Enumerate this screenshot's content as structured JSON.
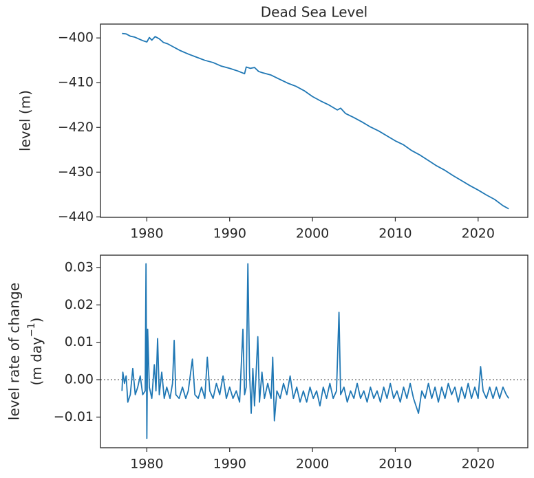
{
  "chart_data": [
    {
      "type": "line",
      "title": "Dead Sea Level",
      "ylabel": "level (m)",
      "color": "#1f77b4",
      "xlim": [
        1974.4,
        2026.0
      ],
      "xticks": [
        1980,
        1990,
        2000,
        2010,
        2020
      ],
      "ylim": [
        -440.1,
        -396.9
      ],
      "yticks": [
        {
          "value": -400,
          "label": "−400"
        },
        {
          "value": -410,
          "label": "−410"
        },
        {
          "value": -420,
          "label": "−420"
        },
        {
          "value": -430,
          "label": "−430"
        },
        {
          "value": -440,
          "label": "−440"
        }
      ],
      "x": [
        1977.0,
        1977.5,
        1978.0,
        1978.5,
        1979.0,
        1979.5,
        1980.0,
        1980.3,
        1980.6,
        1981.0,
        1981.5,
        1982.0,
        1982.5,
        1983.0,
        1984.0,
        1985.0,
        1986.0,
        1987.0,
        1988.0,
        1989.0,
        1990.0,
        1991.0,
        1991.8,
        1992.0,
        1992.5,
        1993.0,
        1993.5,
        1994.0,
        1995.0,
        1996.0,
        1997.0,
        1998.0,
        1999.0,
        2000.0,
        2001.0,
        2002.0,
        2003.0,
        2003.4,
        2004.0,
        2005.0,
        2006.0,
        2007.0,
        2008.0,
        2009.0,
        2010.0,
        2011.0,
        2012.0,
        2013.0,
        2014.0,
        2015.0,
        2016.0,
        2017.0,
        2018.0,
        2019.0,
        2020.0,
        2021.0,
        2022.0,
        2023.0,
        2023.7
      ],
      "values": [
        -399.0,
        -399.1,
        -399.6,
        -399.8,
        -400.2,
        -400.6,
        -400.9,
        -399.9,
        -400.5,
        -399.7,
        -400.2,
        -401.0,
        -401.3,
        -401.8,
        -402.8,
        -403.6,
        -404.3,
        -405.0,
        -405.5,
        -406.3,
        -406.8,
        -407.4,
        -408.0,
        -406.5,
        -406.8,
        -406.6,
        -407.5,
        -407.8,
        -408.3,
        -409.2,
        -410.1,
        -410.8,
        -411.8,
        -413.1,
        -414.1,
        -415.0,
        -416.1,
        -415.7,
        -416.9,
        -417.8,
        -418.8,
        -419.9,
        -420.8,
        -421.9,
        -423.0,
        -423.9,
        -425.2,
        -426.2,
        -427.4,
        -428.6,
        -429.6,
        -430.8,
        -431.9,
        -433.0,
        -434.0,
        -435.1,
        -436.1,
        -437.5,
        -438.2
      ]
    },
    {
      "type": "line",
      "ylabel": "level rate of change",
      "ylabel_unit": "(m day",
      "ylabel_sup": "−1",
      "ylabel_close": ")",
      "color": "#1f77b4",
      "reference_line": 0,
      "reference_color": "#999999",
      "xlim": [
        1974.4,
        2026.0
      ],
      "xticks": [
        1980,
        1990,
        2000,
        2010,
        2020
      ],
      "ylim": [
        -0.0182,
        0.0333
      ],
      "yticks": [
        0.03,
        0.02,
        0.01,
        {
          "value": 0,
          "label": "0.00"
        },
        {
          "value": -0.01,
          "label": "−0.01"
        }
      ],
      "x": [
        1977.0,
        1977.1,
        1977.3,
        1977.5,
        1977.7,
        1978.0,
        1978.3,
        1978.6,
        1978.9,
        1979.2,
        1979.5,
        1979.8,
        1979.9,
        1980.0,
        1980.1,
        1980.3,
        1980.6,
        1980.9,
        1981.1,
        1981.3,
        1981.5,
        1981.8,
        1982.1,
        1982.4,
        1982.8,
        1983.1,
        1983.3,
        1983.5,
        1983.9,
        1984.3,
        1984.7,
        1985.0,
        1985.5,
        1985.8,
        1986.2,
        1986.6,
        1987.0,
        1987.3,
        1987.6,
        1988.0,
        1988.4,
        1988.8,
        1989.2,
        1989.6,
        1990.0,
        1990.4,
        1990.8,
        1991.2,
        1991.6,
        1991.8,
        1992.0,
        1992.2,
        1992.4,
        1992.6,
        1992.8,
        1993.0,
        1993.2,
        1993.4,
        1993.6,
        1993.9,
        1994.2,
        1994.6,
        1995.0,
        1995.2,
        1995.4,
        1995.7,
        1996.1,
        1996.5,
        1996.9,
        1997.3,
        1997.7,
        1998.1,
        1998.5,
        1998.9,
        1999.3,
        1999.7,
        2000.1,
        2000.5,
        2000.9,
        2001.3,
        2001.7,
        2002.1,
        2002.5,
        2002.9,
        2003.2,
        2003.4,
        2003.8,
        2004.2,
        2004.6,
        2005.0,
        2005.4,
        2005.8,
        2006.2,
        2006.6,
        2007.0,
        2007.4,
        2007.8,
        2008.2,
        2008.6,
        2009.0,
        2009.4,
        2009.8,
        2010.2,
        2010.6,
        2011.0,
        2011.4,
        2011.8,
        2012.2,
        2012.8,
        2013.2,
        2013.6,
        2014.0,
        2014.4,
        2014.8,
        2015.2,
        2015.6,
        2016.0,
        2016.4,
        2016.8,
        2017.2,
        2017.6,
        2018.0,
        2018.4,
        2018.8,
        2019.2,
        2019.6,
        2020.0,
        2020.3,
        2020.6,
        2021.0,
        2021.4,
        2021.8,
        2022.2,
        2022.6,
        2023.0,
        2023.4,
        2023.7
      ],
      "values": [
        -0.003,
        0.002,
        -0.001,
        0.001,
        -0.006,
        -0.004,
        0.003,
        -0.004,
        -0.002,
        0.001,
        -0.004,
        -0.003,
        0.031,
        -0.0157,
        0.0135,
        -0.002,
        -0.005,
        0.004,
        -0.003,
        0.011,
        -0.004,
        0.002,
        -0.005,
        -0.002,
        -0.005,
        -0.001,
        0.0105,
        -0.004,
        -0.005,
        -0.002,
        -0.005,
        -0.003,
        0.0055,
        -0.004,
        -0.005,
        -0.002,
        -0.005,
        0.006,
        -0.003,
        -0.005,
        -0.001,
        -0.004,
        0.001,
        -0.005,
        -0.002,
        -0.005,
        -0.003,
        -0.006,
        0.0135,
        -0.004,
        -0.002,
        0.031,
        0.002,
        -0.009,
        0.003,
        -0.007,
        0.002,
        0.0115,
        -0.006,
        0.002,
        -0.005,
        -0.001,
        -0.005,
        0.006,
        -0.011,
        -0.003,
        -0.005,
        -0.001,
        -0.004,
        0.001,
        -0.005,
        -0.002,
        -0.006,
        -0.003,
        -0.006,
        -0.002,
        -0.005,
        -0.003,
        -0.007,
        -0.002,
        -0.005,
        -0.001,
        -0.005,
        -0.003,
        0.018,
        -0.004,
        -0.002,
        -0.006,
        -0.003,
        -0.005,
        -0.001,
        -0.005,
        -0.003,
        -0.006,
        -0.002,
        -0.005,
        -0.003,
        -0.006,
        -0.002,
        -0.005,
        -0.001,
        -0.005,
        -0.003,
        -0.006,
        -0.002,
        -0.005,
        -0.001,
        -0.005,
        -0.009,
        -0.003,
        -0.005,
        -0.001,
        -0.005,
        -0.002,
        -0.006,
        -0.002,
        -0.005,
        -0.001,
        -0.004,
        -0.002,
        -0.006,
        -0.002,
        -0.005,
        -0.001,
        -0.005,
        -0.002,
        -0.005,
        0.0035,
        -0.003,
        -0.005,
        -0.002,
        -0.005,
        -0.002,
        -0.005,
        -0.002,
        -0.004,
        -0.005
      ]
    }
  ]
}
